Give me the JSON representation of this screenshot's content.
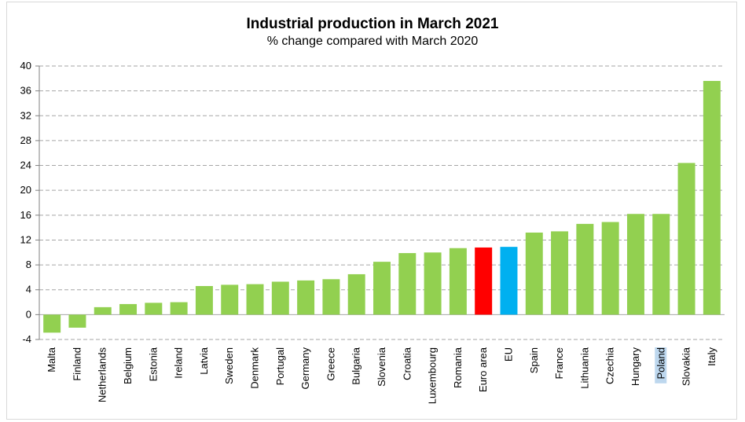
{
  "chart_data": {
    "type": "bar",
    "title": "Industrial production in March 2021",
    "subtitle": "% change compared with March 2020",
    "xlabel": "",
    "ylabel": "",
    "ylim": [
      -4,
      40
    ],
    "yticks": [
      -4,
      0,
      4,
      8,
      12,
      16,
      20,
      24,
      28,
      32,
      36,
      40
    ],
    "grid": true,
    "categories": [
      "Malta",
      "Finland",
      "Netherlands",
      "Belgium",
      "Estonia",
      "Ireland",
      "Latvia",
      "Sweden",
      "Denmark",
      "Portugal",
      "Germany",
      "Greece",
      "Bulgaria",
      "Slovenia",
      "Croatia",
      "Luxembourg",
      "Romania",
      "Euro area",
      "EU",
      "Spain",
      "France",
      "Lithuania",
      "Czechia",
      "Hungary",
      "Poland",
      "Slovakia",
      "Italy"
    ],
    "values": [
      -2.9,
      -2.1,
      1.2,
      1.7,
      1.9,
      2.0,
      4.6,
      4.8,
      4.9,
      5.3,
      5.5,
      5.7,
      6.5,
      8.5,
      9.9,
      10.0,
      10.7,
      10.8,
      10.9,
      13.2,
      13.4,
      14.6,
      14.9,
      16.2,
      16.2,
      24.4,
      37.6
    ],
    "colors": {
      "default": "#92d050",
      "Euro area": "#ff0000",
      "EU": "#00b0f0"
    },
    "highlighted_label": "Poland",
    "highlight_color": "#bdd7ee"
  }
}
